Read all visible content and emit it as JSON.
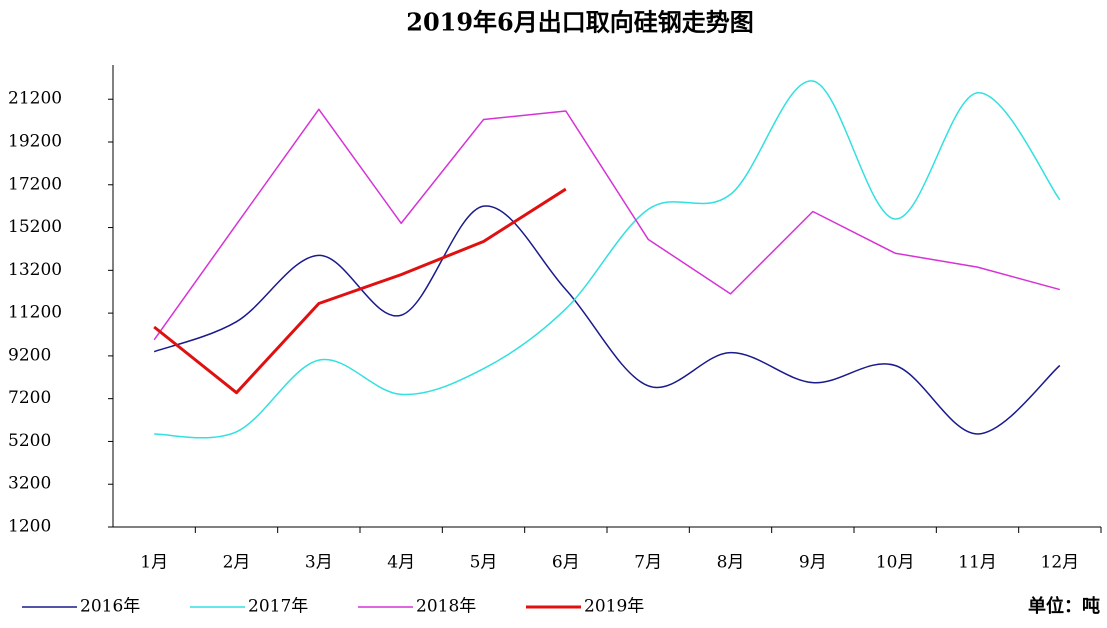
{
  "chart_data": {
    "type": "line",
    "title": "2019年6月出口取向硅钢走势图",
    "categories": [
      "1月",
      "2月",
      "3月",
      "4月",
      "5月",
      "6月",
      "7月",
      "8月",
      "9月",
      "10月",
      "11月",
      "12月"
    ],
    "series": [
      {
        "name": "2016年",
        "color": "#1a1a8c",
        "smooth": true,
        "values": [
          9400,
          10800,
          13900,
          11100,
          16200,
          12300,
          7800,
          9350,
          7950,
          8750,
          5550,
          8750
        ]
      },
      {
        "name": "2017年",
        "color": "#33e0e0",
        "smooth": true,
        "values": [
          5550,
          5650,
          9000,
          7400,
          8600,
          11400,
          16050,
          16750,
          22050,
          15600,
          21500,
          16500
        ]
      },
      {
        "name": "2018年",
        "color": "#d633d6",
        "smooth": false,
        "values": [
          9950,
          15350,
          20730,
          15400,
          20250,
          20650,
          14650,
          12100,
          15950,
          14000,
          13350,
          12300
        ]
      },
      {
        "name": "2019年",
        "color": "#e01010",
        "smooth": false,
        "values": [
          10550,
          7480,
          11650,
          13000,
          14550,
          17000,
          null,
          null,
          null,
          null,
          null,
          null
        ]
      }
    ],
    "ylim": [
      1200,
      22800
    ],
    "yticks": [
      1200,
      3200,
      5200,
      7200,
      9200,
      11200,
      13200,
      15200,
      17200,
      19200,
      21200
    ],
    "grid": false,
    "legend": "bottom",
    "unit_note": "单位：吨"
  }
}
